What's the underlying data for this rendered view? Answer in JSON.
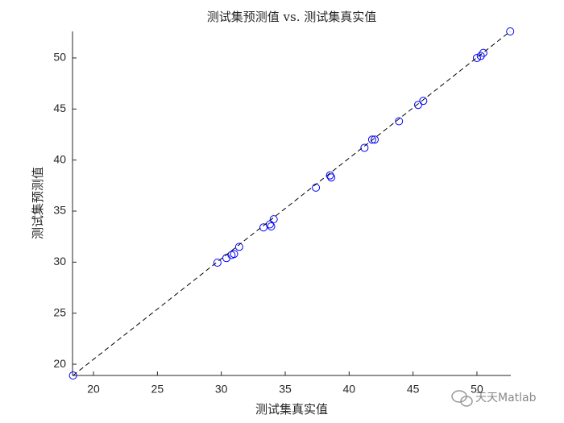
{
  "chart_data": {
    "type": "scatter",
    "title": "测试集预测值 vs. 测试集真实值",
    "x_label": "测试集真实值",
    "y_label": "测试集预测值",
    "watermark": "天天Matlab",
    "xlim": [
      18.36,
      52.65
    ],
    "ylim": [
      18.9,
      52.6
    ],
    "xticks": [
      20,
      25,
      30,
      35,
      40,
      45,
      50
    ],
    "yticks": [
      20,
      25,
      30,
      35,
      40,
      45,
      50
    ],
    "series": [
      {
        "type": "scatter",
        "color": "#0000ff",
        "x": [
          18.4,
          29.7,
          30.4,
          30.8,
          31.0,
          31.4,
          33.3,
          33.8,
          33.9,
          34.1,
          37.4,
          38.5,
          38.6,
          41.2,
          41.8,
          42.0,
          43.9,
          45.4,
          45.8,
          50.0,
          50.3,
          50.5,
          52.6
        ],
        "values": [
          18.9,
          29.95,
          30.4,
          30.7,
          30.8,
          31.5,
          33.4,
          33.7,
          33.5,
          34.2,
          37.3,
          38.5,
          38.3,
          41.2,
          42.0,
          42.0,
          43.8,
          45.4,
          45.8,
          50.0,
          50.2,
          50.5,
          52.6
        ]
      },
      {
        "type": "line",
        "style": "dashed",
        "color": "#000000",
        "x": [
          18.4,
          52.6
        ],
        "values": [
          18.9,
          52.6
        ]
      }
    ]
  }
}
